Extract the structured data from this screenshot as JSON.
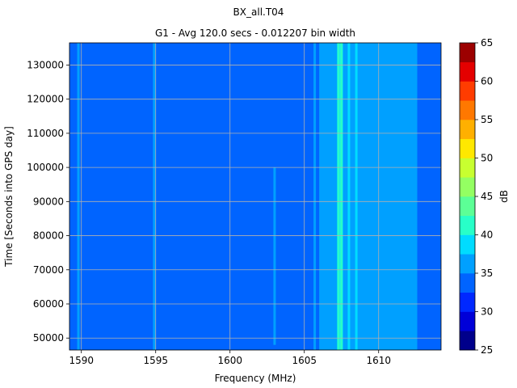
{
  "chart_data": {
    "type": "heatmap",
    "title": "BX_all.T04",
    "subtitle": "G1 - Avg 120.0 secs - 0.012207 bin width",
    "xlabel": "Frequency (MHz)",
    "ylabel": "Time [Seconds into GPS day]",
    "colorbar_label": "dB",
    "xlim": [
      1589.2,
      1614.2
    ],
    "ylim": [
      46500,
      136500
    ],
    "xticks": [
      1590,
      1595,
      1600,
      1605,
      1610
    ],
    "yticks": [
      50000,
      60000,
      70000,
      80000,
      90000,
      100000,
      110000,
      120000,
      130000
    ],
    "colorbar_range": [
      25,
      65
    ],
    "colorbar_ticks": [
      25,
      30,
      35,
      40,
      45,
      50,
      55,
      60,
      65
    ],
    "colorbar_levels": [
      25,
      27.5,
      30,
      32.5,
      35,
      37.5,
      40,
      42.5,
      45,
      47.5,
      50,
      52.5,
      55,
      57.5,
      60,
      62.5,
      65
    ],
    "colorbar_colors": [
      "#00008b",
      "#0000d8",
      "#0028ff",
      "#0064ff",
      "#00a0ff",
      "#00dcff",
      "#28ffc8",
      "#5cff96",
      "#94ff62",
      "#c8ff30",
      "#ffe800",
      "#ffb000",
      "#ff7800",
      "#ff3c00",
      "#e40000",
      "#9c0000"
    ],
    "grid": true,
    "background_level_db": 32.5,
    "bands": [
      {
        "x0": 1589.2,
        "x1": 1605.0,
        "db": 32.5
      },
      {
        "x0": 1605.0,
        "x1": 1606.0,
        "db": 33.5
      },
      {
        "x0": 1606.0,
        "x1": 1608.0,
        "db": 35.0
      },
      {
        "x0": 1607.2,
        "x1": 1607.6,
        "db": 38.0
      },
      {
        "x0": 1608.0,
        "x1": 1612.6,
        "db": 36.0
      },
      {
        "x0": 1612.6,
        "x1": 1614.2,
        "db": 33.0
      }
    ],
    "lines": [
      {
        "x": 1589.8,
        "y0": 46500,
        "y1": 136500,
        "db": 35.0
      },
      {
        "x": 1594.9,
        "y0": 46500,
        "y1": 136500,
        "db": 36.0
      },
      {
        "x": 1603.0,
        "y0": 48000,
        "y1": 100000,
        "db": 36.0
      },
      {
        "x": 1605.7,
        "y0": 46500,
        "y1": 136500,
        "db": 36.0
      },
      {
        "x": 1606.5,
        "y0": 46500,
        "y1": 136500,
        "db": 37.0
      },
      {
        "x": 1607.3,
        "y0": 46500,
        "y1": 136500,
        "db": 40.0
      },
      {
        "x": 1607.5,
        "y0": 46500,
        "y1": 136500,
        "db": 40.0
      },
      {
        "x": 1608.0,
        "y0": 46500,
        "y1": 136500,
        "db": 38.5
      },
      {
        "x": 1608.5,
        "y0": 46500,
        "y1": 136500,
        "db": 38.0
      }
    ]
  }
}
